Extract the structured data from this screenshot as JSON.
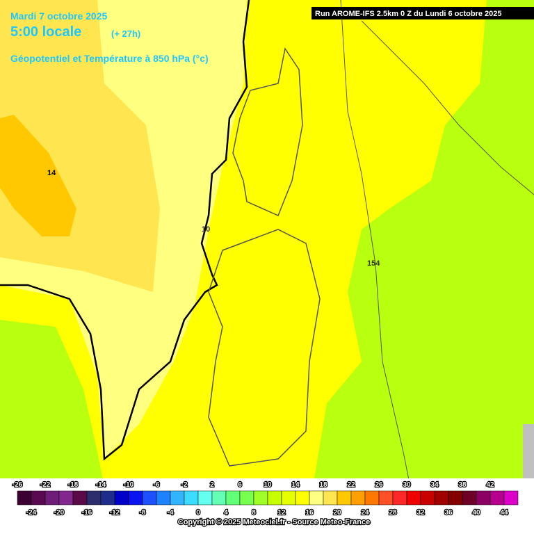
{
  "header": {
    "date": "Mardi 7 octobre 2025",
    "time": "5:00 locale",
    "lead": "(+ 27h)",
    "parameter": "Géopotentiel et Température à 850 hPa (°c)",
    "run": "Run AROME-IFS 2.5km 0 Z du Lundi 6 octobre 2025"
  },
  "map_labels": [
    "14",
    "10",
    "154"
  ],
  "colorbar": {
    "top_labels": [
      "-26",
      "-22",
      "-18",
      "-14",
      "-10",
      "-6",
      "-2",
      "2",
      "6",
      "10",
      "14",
      "18",
      "22",
      "26",
      "30",
      "34",
      "38",
      "42"
    ],
    "bottom_labels": [
      "-24",
      "-20",
      "-16",
      "-12",
      "-8",
      "-4",
      "0",
      "4",
      "8",
      "12",
      "16",
      "20",
      "24",
      "28",
      "32",
      "36",
      "40",
      "44"
    ],
    "colors": [
      "#3c0032",
      "#5a0a50",
      "#6e1e78",
      "#82288c",
      "#5a0a46",
      "#2d2d6e",
      "#1e2d8c",
      "#0000c8",
      "#0a14f0",
      "#1e50ff",
      "#1e82ff",
      "#32b4ff",
      "#3cdcff",
      "#64fff0",
      "#64ffb4",
      "#64ff78",
      "#78ff50",
      "#a0ff28",
      "#c8ff00",
      "#e6ff00",
      "#ffff00",
      "#ffff82",
      "#ffe650",
      "#ffc800",
      "#ffa000",
      "#ff7800",
      "#ff5028",
      "#ff2828",
      "#f00000",
      "#c80000",
      "#a00000",
      "#820000",
      "#6e0028",
      "#8c0064",
      "#b4008c",
      "#dc00c8"
    ]
  },
  "footer": {
    "copyright": "Copyright © 2025 Meteociel.fr - Source Meteo-France"
  }
}
